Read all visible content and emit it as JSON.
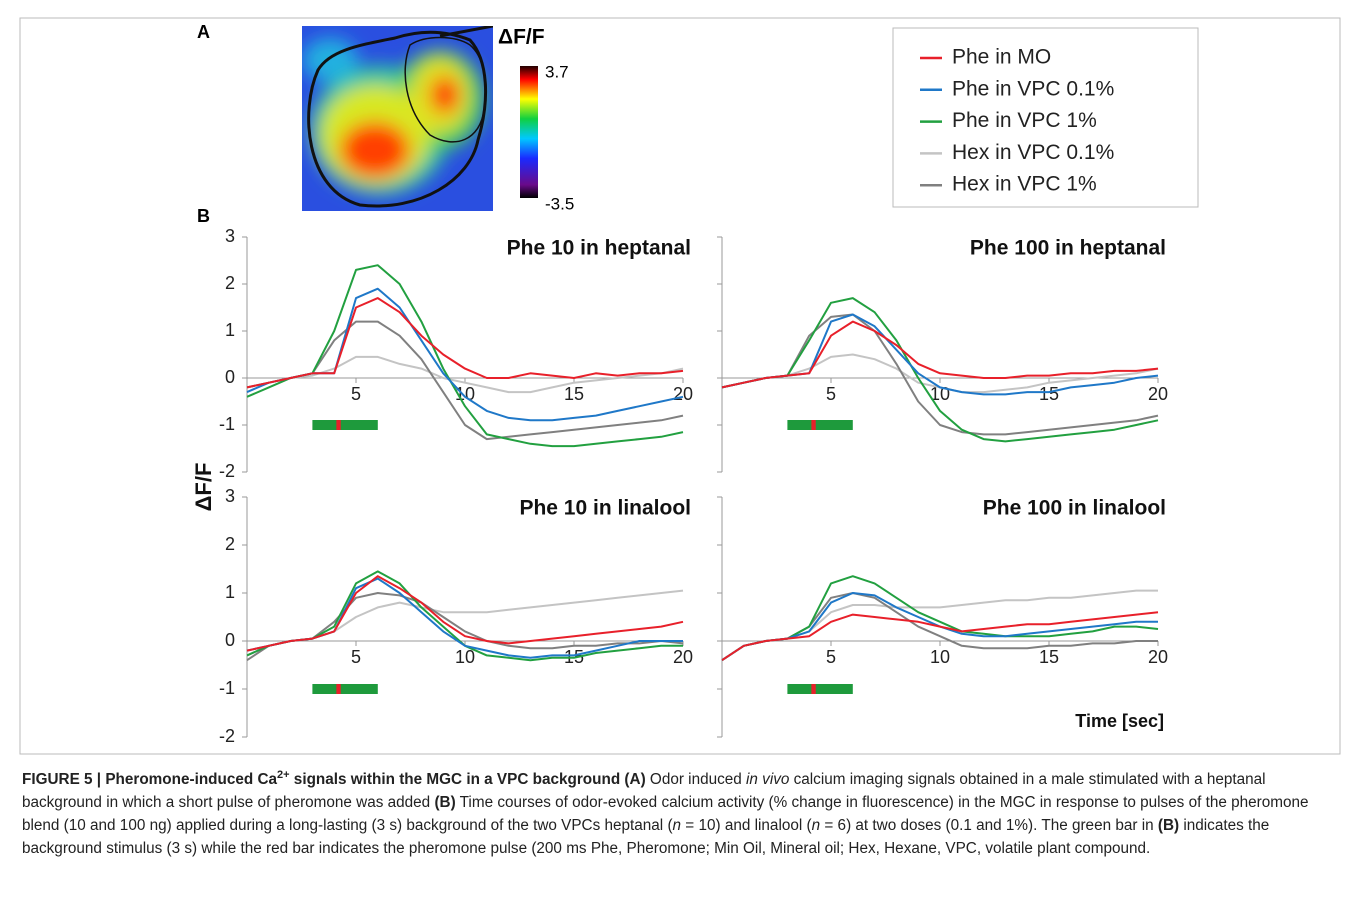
{
  "panel_labels": [
    "A",
    "B"
  ],
  "panel_a": {
    "colorbar_title": "ΔF/F",
    "colorbar_max": 3.7,
    "colorbar_min": -3.5
  },
  "chart_data": [
    {
      "type": "line",
      "title": "Phe 10 in heptanal",
      "ylabel": "ΔF/F",
      "x": [
        0,
        1,
        2,
        3,
        4,
        5,
        6,
        7,
        8,
        9,
        10,
        11,
        12,
        13,
        14,
        15,
        16,
        17,
        18,
        19,
        20
      ],
      "xlim": [
        0,
        20
      ],
      "ylim": [
        -2,
        3
      ],
      "xticks": [
        5,
        10,
        15,
        20
      ],
      "yticks": [
        -2,
        -1,
        0,
        1,
        2,
        3
      ],
      "background_stimulus": [
        3,
        6
      ],
      "pheromone_pulse": [
        4.1,
        4.3
      ],
      "series": [
        {
          "name": "Phe in MO",
          "color": "#e8202a",
          "values": [
            -0.2,
            -0.1,
            0,
            0.1,
            0.1,
            1.5,
            1.7,
            1.4,
            0.9,
            0.5,
            0.2,
            0,
            0,
            0.1,
            0.05,
            0,
            0.1,
            0.05,
            0.1,
            0.1,
            0.15
          ]
        },
        {
          "name": "Phe in VPC 0.1%",
          "color": "#1f78c8",
          "values": [
            -0.3,
            -0.1,
            0,
            0.1,
            0.1,
            1.7,
            1.9,
            1.5,
            0.8,
            0.1,
            -0.4,
            -0.7,
            -0.85,
            -0.9,
            -0.9,
            -0.85,
            -0.8,
            -0.7,
            -0.6,
            -0.5,
            -0.4
          ]
        },
        {
          "name": "Phe in VPC 1%",
          "color": "#22a040",
          "values": [
            -0.4,
            -0.2,
            0,
            0.1,
            1.0,
            2.3,
            2.4,
            2.0,
            1.2,
            0.2,
            -0.6,
            -1.2,
            -1.3,
            -1.4,
            -1.45,
            -1.45,
            -1.4,
            -1.35,
            -1.3,
            -1.25,
            -1.15
          ]
        },
        {
          "name": "Hex in VPC 0.1%",
          "color": "#c4c4c4",
          "values": [
            -0.2,
            -0.1,
            0,
            0.05,
            0.2,
            0.45,
            0.45,
            0.3,
            0.2,
            0,
            -0.1,
            -0.2,
            -0.3,
            -0.3,
            -0.2,
            -0.1,
            -0.05,
            0,
            0.05,
            0.1,
            0.2
          ]
        },
        {
          "name": "Hex in VPC 1%",
          "color": "#808080",
          "values": [
            -0.2,
            -0.1,
            0,
            0.1,
            0.8,
            1.2,
            1.2,
            0.9,
            0.4,
            -0.3,
            -1.0,
            -1.3,
            -1.25,
            -1.2,
            -1.15,
            -1.1,
            -1.05,
            -1.0,
            -0.95,
            -0.9,
            -0.8
          ]
        }
      ]
    },
    {
      "type": "line",
      "title": "Phe 100 in heptanal",
      "x": [
        0,
        1,
        2,
        3,
        4,
        5,
        6,
        7,
        8,
        9,
        10,
        11,
        12,
        13,
        14,
        15,
        16,
        17,
        18,
        19,
        20
      ],
      "xlim": [
        0,
        20
      ],
      "ylim": [
        -2,
        3
      ],
      "xticks": [
        5,
        10,
        15,
        20
      ],
      "background_stimulus": [
        3,
        6
      ],
      "pheromone_pulse": [
        4.1,
        4.3
      ],
      "series": [
        {
          "values": [
            -0.2,
            -0.1,
            0,
            0.05,
            0.1,
            0.9,
            1.2,
            1.0,
            0.7,
            0.3,
            0.1,
            0.05,
            0,
            0,
            0.05,
            0.05,
            0.1,
            0.1,
            0.15,
            0.15,
            0.2
          ]
        },
        {
          "values": [
            -0.2,
            -0.1,
            0,
            0.05,
            0.1,
            1.2,
            1.35,
            1.1,
            0.6,
            0.1,
            -0.2,
            -0.3,
            -0.35,
            -0.35,
            -0.3,
            -0.3,
            -0.2,
            -0.15,
            -0.1,
            0,
            0.05
          ]
        },
        {
          "values": [
            -0.2,
            -0.1,
            0,
            0.05,
            0.8,
            1.6,
            1.7,
            1.4,
            0.8,
            0,
            -0.7,
            -1.1,
            -1.3,
            -1.35,
            -1.3,
            -1.25,
            -1.2,
            -1.15,
            -1.1,
            -1.0,
            -0.9
          ]
        },
        {
          "values": [
            -0.2,
            -0.1,
            0,
            0.05,
            0.2,
            0.45,
            0.5,
            0.4,
            0.2,
            -0.1,
            -0.2,
            -0.3,
            -0.3,
            -0.25,
            -0.2,
            -0.1,
            -0.05,
            0,
            0.05,
            0.1,
            0.2
          ]
        },
        {
          "values": [
            -0.2,
            -0.1,
            0,
            0.05,
            0.9,
            1.3,
            1.35,
            1.0,
            0.3,
            -0.5,
            -1.0,
            -1.15,
            -1.2,
            -1.2,
            -1.15,
            -1.1,
            -1.05,
            -1.0,
            -0.95,
            -0.9,
            -0.8
          ]
        }
      ]
    },
    {
      "type": "line",
      "title": "Phe 10 in linalool",
      "x": [
        0,
        1,
        2,
        3,
        4,
        5,
        6,
        7,
        8,
        9,
        10,
        11,
        12,
        13,
        14,
        15,
        16,
        17,
        18,
        19,
        20
      ],
      "xlim": [
        0,
        20
      ],
      "ylim": [
        -2,
        3
      ],
      "xticks": [
        5,
        10,
        15,
        20
      ],
      "yticks": [
        -2,
        -1,
        0,
        1,
        2,
        3
      ],
      "background_stimulus": [
        3,
        6
      ],
      "pheromone_pulse": [
        4.1,
        4.3
      ],
      "series": [
        {
          "values": [
            -0.2,
            -0.1,
            0,
            0.05,
            0.2,
            1.0,
            1.35,
            1.1,
            0.8,
            0.4,
            0.1,
            0,
            -0.05,
            0,
            0.05,
            0.1,
            0.15,
            0.2,
            0.25,
            0.3,
            0.4
          ]
        },
        {
          "values": [
            -0.2,
            -0.1,
            0,
            0.05,
            0.2,
            1.1,
            1.3,
            1.0,
            0.6,
            0.2,
            -0.1,
            -0.2,
            -0.3,
            -0.35,
            -0.3,
            -0.3,
            -0.2,
            -0.1,
            0,
            0,
            0
          ]
        },
        {
          "values": [
            -0.3,
            -0.1,
            0,
            0.05,
            0.3,
            1.2,
            1.45,
            1.2,
            0.7,
            0.3,
            -0.1,
            -0.3,
            -0.35,
            -0.4,
            -0.35,
            -0.35,
            -0.25,
            -0.2,
            -0.15,
            -0.1,
            -0.1
          ]
        },
        {
          "values": [
            -0.3,
            -0.1,
            0,
            0.05,
            0.2,
            0.5,
            0.7,
            0.8,
            0.7,
            0.6,
            0.6,
            0.6,
            0.65,
            0.7,
            0.75,
            0.8,
            0.85,
            0.9,
            0.95,
            1.0,
            1.05
          ]
        },
        {
          "values": [
            -0.4,
            -0.1,
            0,
            0.05,
            0.4,
            0.9,
            1.0,
            0.95,
            0.8,
            0.5,
            0.2,
            0,
            -0.1,
            -0.15,
            -0.15,
            -0.1,
            -0.1,
            -0.05,
            -0.05,
            0,
            -0.05
          ]
        }
      ]
    },
    {
      "type": "line",
      "title": "Phe 100 in linalool",
      "xlabel": "Time [sec]",
      "x": [
        0,
        1,
        2,
        3,
        4,
        5,
        6,
        7,
        8,
        9,
        10,
        11,
        12,
        13,
        14,
        15,
        16,
        17,
        18,
        19,
        20
      ],
      "xlim": [
        0,
        20
      ],
      "ylim": [
        -2,
        3
      ],
      "xticks": [
        5,
        10,
        15,
        20
      ],
      "background_stimulus": [
        3,
        6
      ],
      "pheromone_pulse": [
        4.1,
        4.3
      ],
      "series": [
        {
          "values": [
            -0.4,
            -0.1,
            0,
            0.05,
            0.1,
            0.4,
            0.55,
            0.5,
            0.45,
            0.4,
            0.3,
            0.2,
            0.25,
            0.3,
            0.35,
            0.35,
            0.4,
            0.45,
            0.5,
            0.55,
            0.6
          ]
        },
        {
          "values": [
            -0.4,
            -0.1,
            0,
            0.05,
            0.2,
            0.8,
            1.0,
            0.95,
            0.7,
            0.5,
            0.3,
            0.15,
            0.1,
            0.1,
            0.15,
            0.2,
            0.25,
            0.3,
            0.35,
            0.4,
            0.4
          ]
        },
        {
          "values": [
            -0.4,
            -0.1,
            0,
            0.05,
            0.3,
            1.2,
            1.35,
            1.2,
            0.9,
            0.6,
            0.4,
            0.2,
            0.15,
            0.1,
            0.1,
            0.1,
            0.15,
            0.2,
            0.3,
            0.3,
            0.25
          ]
        },
        {
          "values": [
            -0.4,
            -0.1,
            0,
            0.05,
            0.2,
            0.6,
            0.75,
            0.75,
            0.7,
            0.7,
            0.7,
            0.75,
            0.8,
            0.85,
            0.85,
            0.9,
            0.9,
            0.95,
            1.0,
            1.05,
            1.05
          ]
        },
        {
          "values": [
            -0.4,
            -0.1,
            0,
            0.05,
            0.3,
            0.9,
            1.0,
            0.9,
            0.6,
            0.3,
            0.1,
            -0.1,
            -0.15,
            -0.15,
            -0.15,
            -0.1,
            -0.1,
            -0.05,
            -0.05,
            0,
            0
          ]
        }
      ]
    }
  ],
  "caption": [
    {
      "text": "FIGURE 5 | Pheromone-induced Ca",
      "style": "bold"
    },
    {
      "text": "2+",
      "style": "bold-sup"
    },
    {
      "text": " signals within the MGC in a VPC background (A)",
      "style": "bold"
    },
    {
      "text": " Odor induced ",
      "style": "normal"
    },
    {
      "text": "in vivo",
      "style": "italic"
    },
    {
      "text": " calcium imaging signals obtained in a male stimulated with a heptanal background in which a short pulse of pheromone was added ",
      "style": "normal"
    },
    {
      "text": "(B)",
      "style": "bold"
    },
    {
      "text": " Time courses of odor-evoked calcium activity (% change in fluorescence) in the MGC in response to pulses of the pheromone blend (10 and 100 ng) applied during a long-lasting (3 s) background of the two VPCs heptanal (",
      "style": "normal"
    },
    {
      "text": "n",
      "style": "italic"
    },
    {
      "text": " = 10) and linalool (",
      "style": "normal"
    },
    {
      "text": "n",
      "style": "italic"
    },
    {
      "text": " = 6) at two doses (0.1 and 1%). The green bar in ",
      "style": "normal"
    },
    {
      "text": "(B)",
      "style": "bold"
    },
    {
      "text": " indicates the background stimulus (3 s) while the red bar indicates the pheromone pulse (200 ms Phe, Pheromone; Min Oil, Mineral oil; Hex, Hexane, VPC, volatile plant compound.",
      "style": "normal"
    }
  ]
}
